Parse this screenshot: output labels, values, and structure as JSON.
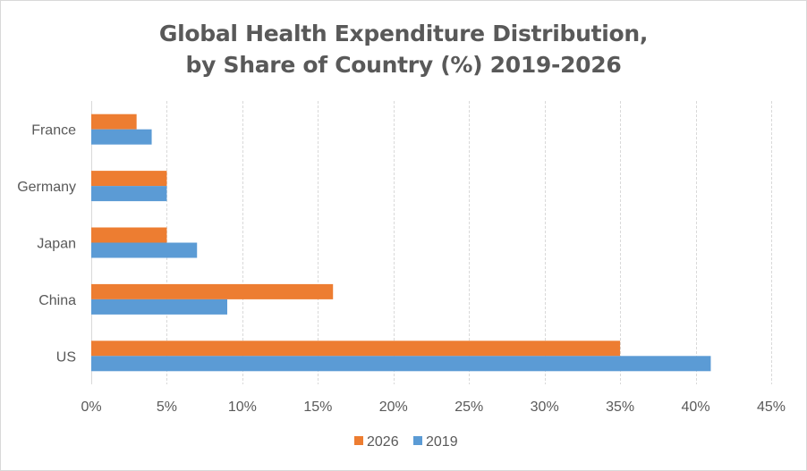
{
  "chart_data": {
    "type": "bar",
    "orientation": "horizontal",
    "title": "Global Health Expenditure Distribution, by Share of Country (%) 2019-2026",
    "title_lines": [
      "Global Health Expenditure Distribution,",
      "by Share of Country (%) 2019-2026"
    ],
    "categories": [
      "France",
      "Germany",
      "Japan",
      "China",
      "US"
    ],
    "series": [
      {
        "name": "2026",
        "color": "#ED7D31",
        "values": [
          3,
          5,
          5,
          16,
          35
        ]
      },
      {
        "name": "2019",
        "color": "#5B9BD5",
        "values": [
          4,
          5,
          7,
          9,
          41
        ]
      }
    ],
    "xlabel": "",
    "ylabel": "",
    "xlim": [
      0,
      45
    ],
    "x_ticks": [
      0,
      5,
      10,
      15,
      20,
      25,
      30,
      35,
      40,
      45
    ],
    "x_tick_labels": [
      "0%",
      "5%",
      "10%",
      "15%",
      "20%",
      "25%",
      "30%",
      "35%",
      "40%",
      "45%"
    ],
    "grid": "vertical",
    "legend": {
      "placement": "bottom",
      "entries": [
        "2026",
        "2019"
      ]
    },
    "colors": {
      "text": "#595959",
      "grid": "#D9D9D9",
      "border": "#D9D9D9"
    }
  }
}
